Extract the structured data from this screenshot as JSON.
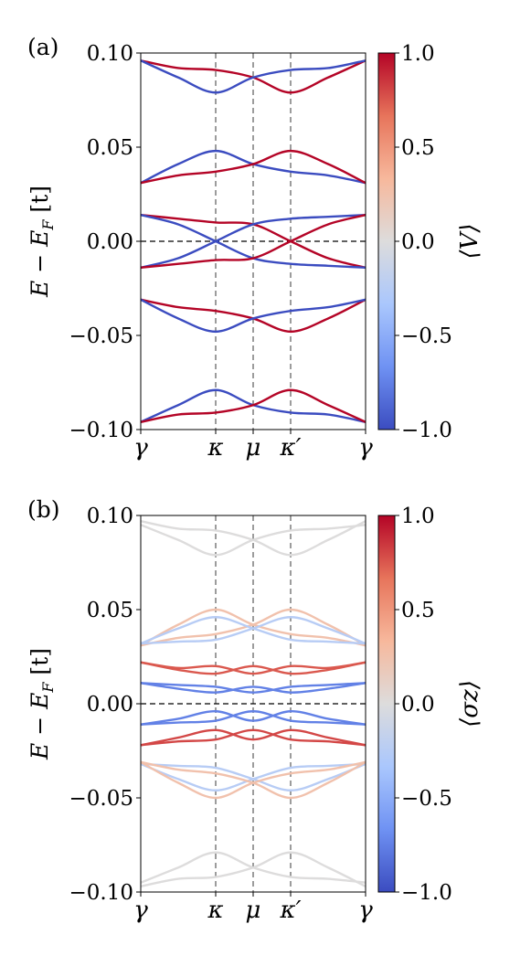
{
  "chart_data": [
    {
      "type": "line",
      "panel_label": "(a)",
      "ylabel": "E − E_F [t]",
      "ylabel_parts": [
        "E − E",
        "F",
        " [t]"
      ],
      "ylim": [
        -0.1,
        0.1
      ],
      "yticks": [
        0.1,
        0.05,
        0.0,
        -0.05,
        -0.1
      ],
      "ytick_labels": [
        "0.10",
        "0.05",
        "0.00",
        "−0.05",
        "−0.10"
      ],
      "x": [
        0,
        1,
        2,
        3,
        4
      ],
      "xtick_labels": [
        "γ",
        "κ",
        "μ",
        "κ′",
        "γ"
      ],
      "xtick_positions": [
        0,
        2,
        3,
        4,
        6
      ],
      "vlines_at": [
        2,
        3,
        4
      ],
      "hline_at": 0.0,
      "colorbar": {
        "label": "⟨V⟩",
        "min": -1.0,
        "max": 1.0,
        "tick_labels": [
          "1.0",
          "0.5",
          "0.0",
          "−0.5",
          "−1.0"
        ],
        "ticks": [
          1.0,
          0.5,
          0.0,
          -0.5,
          -1.0
        ]
      },
      "series": [
        {
          "color_value": 1.0,
          "points": [
            [
              0,
              0.096
            ],
            [
              1,
              0.092
            ],
            [
              2,
              0.091
            ],
            [
              3,
              0.087
            ],
            [
              4,
              0.079
            ],
            [
              5,
              0.087
            ],
            [
              6,
              0.096
            ]
          ]
        },
        {
          "color_value": -1.0,
          "points": [
            [
              0,
              0.096
            ],
            [
              1,
              0.087
            ],
            [
              2,
              0.079
            ],
            [
              3,
              0.087
            ],
            [
              4,
              0.091
            ],
            [
              5,
              0.092
            ],
            [
              6,
              0.096
            ]
          ]
        },
        {
          "color_value": -1.0,
          "points": [
            [
              0,
              0.031
            ],
            [
              1,
              0.041
            ],
            [
              2,
              0.048
            ],
            [
              3,
              0.041
            ],
            [
              4,
              0.037
            ],
            [
              5,
              0.035
            ],
            [
              6,
              0.031
            ]
          ]
        },
        {
          "color_value": 1.0,
          "points": [
            [
              0,
              0.031
            ],
            [
              1,
              0.035
            ],
            [
              2,
              0.037
            ],
            [
              3,
              0.041
            ],
            [
              4,
              0.048
            ],
            [
              5,
              0.041
            ],
            [
              6,
              0.031
            ]
          ]
        },
        {
          "color_value": 1.0,
          "points": [
            [
              0,
              0.014
            ],
            [
              1,
              0.012
            ],
            [
              2,
              0.01
            ],
            [
              3,
              0.009
            ],
            [
              4,
              0.0
            ],
            [
              5,
              -0.009
            ],
            [
              6,
              -0.014
            ]
          ]
        },
        {
          "color_value": -1.0,
          "points": [
            [
              0,
              0.014
            ],
            [
              1,
              0.009
            ],
            [
              2,
              0.0
            ],
            [
              3,
              -0.009
            ],
            [
              4,
              -0.012
            ],
            [
              5,
              -0.013
            ],
            [
              6,
              -0.014
            ]
          ]
        },
        {
          "color_value": -1.0,
          "points": [
            [
              0,
              -0.014
            ],
            [
              1,
              -0.009
            ],
            [
              2,
              0.0
            ],
            [
              3,
              0.009
            ],
            [
              4,
              0.012
            ],
            [
              5,
              0.013
            ],
            [
              6,
              0.014
            ]
          ]
        },
        {
          "color_value": 1.0,
          "points": [
            [
              0,
              -0.014
            ],
            [
              1,
              -0.012
            ],
            [
              2,
              -0.01
            ],
            [
              3,
              -0.009
            ],
            [
              4,
              0.0
            ],
            [
              5,
              0.009
            ],
            [
              6,
              0.014
            ]
          ]
        },
        {
          "color_value": 1.0,
          "points": [
            [
              0,
              -0.031
            ],
            [
              1,
              -0.035
            ],
            [
              2,
              -0.037
            ],
            [
              3,
              -0.041
            ],
            [
              4,
              -0.048
            ],
            [
              5,
              -0.041
            ],
            [
              6,
              -0.031
            ]
          ]
        },
        {
          "color_value": -1.0,
          "points": [
            [
              0,
              -0.031
            ],
            [
              1,
              -0.041
            ],
            [
              2,
              -0.048
            ],
            [
              3,
              -0.041
            ],
            [
              4,
              -0.037
            ],
            [
              5,
              -0.035
            ],
            [
              6,
              -0.031
            ]
          ]
        },
        {
          "color_value": -1.0,
          "points": [
            [
              0,
              -0.096
            ],
            [
              1,
              -0.087
            ],
            [
              2,
              -0.079
            ],
            [
              3,
              -0.087
            ],
            [
              4,
              -0.091
            ],
            [
              5,
              -0.092
            ],
            [
              6,
              -0.096
            ]
          ]
        },
        {
          "color_value": 1.0,
          "points": [
            [
              0,
              -0.096
            ],
            [
              1,
              -0.092
            ],
            [
              2,
              -0.091
            ],
            [
              3,
              -0.087
            ],
            [
              4,
              -0.079
            ],
            [
              5,
              -0.087
            ],
            [
              6,
              -0.096
            ]
          ]
        }
      ]
    },
    {
      "type": "line",
      "panel_label": "(b)",
      "ylabel": "E − E_F [t]",
      "ylabel_parts": [
        "E − E",
        "F",
        " [t]"
      ],
      "ylim": [
        -0.1,
        0.1
      ],
      "yticks": [
        0.1,
        0.05,
        0.0,
        -0.05,
        -0.1
      ],
      "ytick_labels": [
        "0.10",
        "0.05",
        "0.00",
        "−0.05",
        "−0.10"
      ],
      "xtick_labels": [
        "γ",
        "κ",
        "μ",
        "κ′",
        "γ"
      ],
      "xtick_positions": [
        0,
        2,
        3,
        4,
        6
      ],
      "vlines_at": [
        2,
        3,
        4
      ],
      "hline_at": 0.0,
      "colorbar": {
        "label": "⟨σz⟩",
        "min": -1.0,
        "max": 1.0,
        "tick_labels": [
          "1.0",
          "0.5",
          "0.0",
          "−0.5",
          "−1.0"
        ],
        "ticks": [
          1.0,
          0.5,
          0.0,
          -0.5,
          -1.0
        ]
      },
      "series": [
        {
          "color_value": 0.0,
          "points": [
            [
              0,
              0.097
            ],
            [
              1,
              0.093
            ],
            [
              2,
              0.092
            ],
            [
              3,
              0.087
            ],
            [
              4,
              0.079
            ],
            [
              5,
              0.087
            ],
            [
              6,
              0.097
            ]
          ]
        },
        {
          "color_value": 0.0,
          "points": [
            [
              0,
              0.095
            ],
            [
              1,
              0.087
            ],
            [
              2,
              0.079
            ],
            [
              3,
              0.087
            ],
            [
              4,
              0.092
            ],
            [
              5,
              0.093
            ],
            [
              6,
              0.095
            ]
          ]
        },
        {
          "color_value": 0.25,
          "points": [
            [
              0,
              0.031
            ],
            [
              1,
              0.042
            ],
            [
              2,
              0.05
            ],
            [
              3,
              0.042
            ],
            [
              4,
              0.037
            ],
            [
              5,
              0.035
            ],
            [
              6,
              0.031
            ]
          ]
        },
        {
          "color_value": 0.25,
          "points": [
            [
              0,
              0.031
            ],
            [
              1,
              0.035
            ],
            [
              2,
              0.037
            ],
            [
              3,
              0.042
            ],
            [
              4,
              0.05
            ],
            [
              5,
              0.042
            ],
            [
              6,
              0.031
            ]
          ]
        },
        {
          "color_value": -0.25,
          "points": [
            [
              0,
              0.032
            ],
            [
              1,
              0.04
            ],
            [
              2,
              0.046
            ],
            [
              3,
              0.04
            ],
            [
              4,
              0.034
            ],
            [
              5,
              0.033
            ],
            [
              6,
              0.032
            ]
          ]
        },
        {
          "color_value": -0.25,
          "points": [
            [
              0,
              0.032
            ],
            [
              1,
              0.033
            ],
            [
              2,
              0.034
            ],
            [
              3,
              0.04
            ],
            [
              4,
              0.046
            ],
            [
              5,
              0.04
            ],
            [
              6,
              0.032
            ]
          ]
        },
        {
          "color_value": 0.75,
          "points": [
            [
              0,
              0.022
            ],
            [
              1,
              0.018
            ],
            [
              2,
              0.016
            ],
            [
              3,
              0.02
            ],
            [
              4,
              0.016
            ],
            [
              5,
              0.018
            ],
            [
              6,
              0.022
            ]
          ]
        },
        {
          "color_value": 0.75,
          "points": [
            [
              0,
              0.022
            ],
            [
              1,
              0.019
            ],
            [
              2,
              0.02
            ],
            [
              3,
              0.016
            ],
            [
              4,
              0.02
            ],
            [
              5,
              0.019
            ],
            [
              6,
              0.022
            ]
          ]
        },
        {
          "color_value": -0.75,
          "points": [
            [
              0,
              0.011
            ],
            [
              1,
              0.01
            ],
            [
              2,
              0.009
            ],
            [
              3,
              0.006
            ],
            [
              4,
              0.009
            ],
            [
              5,
              0.01
            ],
            [
              6,
              0.011
            ]
          ]
        },
        {
          "color_value": -0.75,
          "points": [
            [
              0,
              0.011
            ],
            [
              1,
              0.008
            ],
            [
              2,
              0.006
            ],
            [
              3,
              0.009
            ],
            [
              4,
              0.006
            ],
            [
              5,
              0.008
            ],
            [
              6,
              0.011
            ]
          ]
        },
        {
          "color_value": -0.75,
          "points": [
            [
              0,
              -0.011
            ],
            [
              1,
              -0.008
            ],
            [
              2,
              -0.004
            ],
            [
              3,
              -0.009
            ],
            [
              4,
              -0.004
            ],
            [
              5,
              -0.008
            ],
            [
              6,
              -0.011
            ]
          ]
        },
        {
          "color_value": -0.75,
          "points": [
            [
              0,
              -0.011
            ],
            [
              1,
              -0.01
            ],
            [
              2,
              -0.009
            ],
            [
              3,
              -0.004
            ],
            [
              4,
              -0.009
            ],
            [
              5,
              -0.01
            ],
            [
              6,
              -0.011
            ]
          ]
        },
        {
          "color_value": 0.8,
          "points": [
            [
              0,
              -0.022
            ],
            [
              1,
              -0.018
            ],
            [
              2,
              -0.014
            ],
            [
              3,
              -0.019
            ],
            [
              4,
              -0.014
            ],
            [
              5,
              -0.018
            ],
            [
              6,
              -0.022
            ]
          ]
        },
        {
          "color_value": 0.8,
          "points": [
            [
              0,
              -0.022
            ],
            [
              1,
              -0.02
            ],
            [
              2,
              -0.019
            ],
            [
              3,
              -0.014
            ],
            [
              4,
              -0.019
            ],
            [
              5,
              -0.02
            ],
            [
              6,
              -0.022
            ]
          ]
        },
        {
          "color_value": -0.25,
          "points": [
            [
              0,
              -0.032
            ],
            [
              1,
              -0.04
            ],
            [
              2,
              -0.046
            ],
            [
              3,
              -0.04
            ],
            [
              4,
              -0.034
            ],
            [
              5,
              -0.033
            ],
            [
              6,
              -0.032
            ]
          ]
        },
        {
          "color_value": -0.25,
          "points": [
            [
              0,
              -0.032
            ],
            [
              1,
              -0.033
            ],
            [
              2,
              -0.034
            ],
            [
              3,
              -0.04
            ],
            [
              4,
              -0.046
            ],
            [
              5,
              -0.04
            ],
            [
              6,
              -0.032
            ]
          ]
        },
        {
          "color_value": 0.25,
          "points": [
            [
              0,
              -0.031
            ],
            [
              1,
              -0.042
            ],
            [
              2,
              -0.05
            ],
            [
              3,
              -0.042
            ],
            [
              4,
              -0.037
            ],
            [
              5,
              -0.035
            ],
            [
              6,
              -0.031
            ]
          ]
        },
        {
          "color_value": 0.25,
          "points": [
            [
              0,
              -0.031
            ],
            [
              1,
              -0.035
            ],
            [
              2,
              -0.037
            ],
            [
              3,
              -0.042
            ],
            [
              4,
              -0.05
            ],
            [
              5,
              -0.042
            ],
            [
              6,
              -0.031
            ]
          ]
        },
        {
          "color_value": 0.0,
          "points": [
            [
              0,
              -0.097
            ],
            [
              1,
              -0.093
            ],
            [
              2,
              -0.092
            ],
            [
              3,
              -0.087
            ],
            [
              4,
              -0.079
            ],
            [
              5,
              -0.087
            ],
            [
              6,
              -0.097
            ]
          ]
        },
        {
          "color_value": 0.0,
          "points": [
            [
              0,
              -0.095
            ],
            [
              1,
              -0.087
            ],
            [
              2,
              -0.079
            ],
            [
              3,
              -0.087
            ],
            [
              4,
              -0.092
            ],
            [
              5,
              -0.093
            ],
            [
              6,
              -0.095
            ]
          ]
        }
      ]
    }
  ],
  "colormap": {
    "name": "coolwarm",
    "stops": [
      "#3b4cc0",
      "#6f92f3",
      "#aac7fd",
      "#dddcdc",
      "#f7b89c",
      "#e7745b",
      "#b40426"
    ]
  }
}
